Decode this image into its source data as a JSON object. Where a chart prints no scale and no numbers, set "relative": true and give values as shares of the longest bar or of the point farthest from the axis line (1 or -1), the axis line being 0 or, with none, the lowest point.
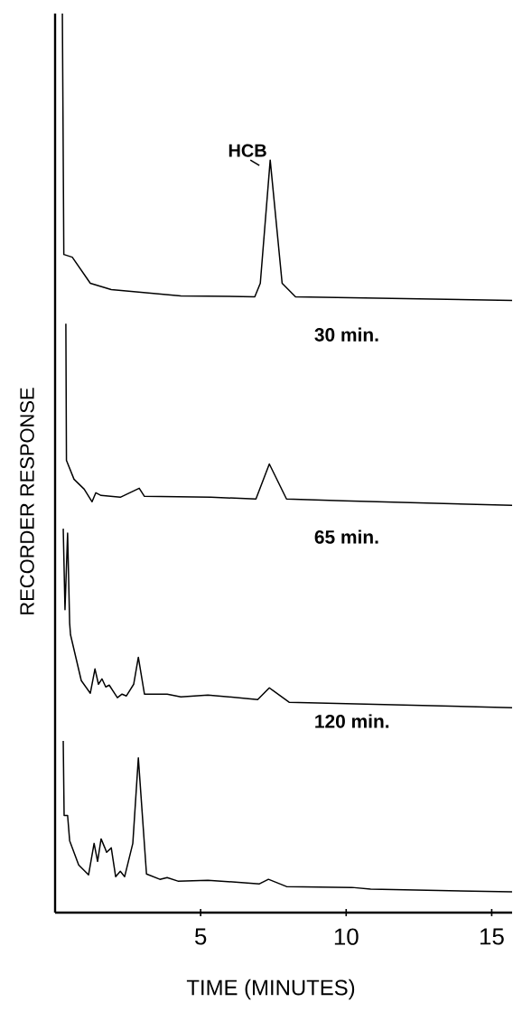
{
  "chart_data": {
    "type": "line",
    "relative": true,
    "xlabel": "TIME (MINUTES)",
    "ylabel": "RECORDER RESPONSE",
    "xlim": [
      0,
      15.7
    ],
    "xticks": [
      5,
      10,
      15
    ],
    "marker": "none",
    "line_style": "solid",
    "grid": false,
    "annotations": [
      {
        "text": "HCB",
        "x": 7.39,
        "y": 0.837
      },
      "30 min.",
      "65 min.",
      "120 min."
    ],
    "series": [
      {
        "color": "#000000",
        "x": [
          0.25,
          0.3,
          0.59,
          1.21,
          1.93,
          4.32,
          6.86,
          7.05,
          7.39,
          7.8,
          8.26,
          15.7
        ],
        "values": [
          1.0,
          0.732,
          0.729,
          0.7,
          0.693,
          0.686,
          0.685,
          0.7,
          0.837,
          0.7,
          0.685,
          0.681
        ]
      },
      {
        "color": "#000000",
        "x": [
          0.37,
          0.39,
          0.65,
          1.0,
          1.27,
          1.4,
          1.58,
          2.24,
          2.89,
          3.07,
          5.35,
          6.9,
          7.36,
          7.95,
          9.9,
          15.7
        ],
        "values": [
          0.655,
          0.503,
          0.482,
          0.471,
          0.457,
          0.467,
          0.464,
          0.462,
          0.472,
          0.463,
          0.462,
          0.46,
          0.499,
          0.46,
          0.458,
          0.453
        ]
      },
      {
        "color": "#000000",
        "x": [
          0.28,
          0.34,
          0.43,
          0.5,
          0.53,
          0.9,
          1.21,
          1.37,
          1.49,
          1.61,
          1.74,
          1.86,
          2.14,
          2.3,
          2.45,
          2.7,
          2.86,
          3.07,
          3.85,
          4.32,
          5.25,
          6.96,
          7.36,
          8.04,
          15.7
        ],
        "values": [
          0.427,
          0.337,
          0.422,
          0.322,
          0.309,
          0.258,
          0.244,
          0.271,
          0.254,
          0.26,
          0.251,
          0.253,
          0.239,
          0.243,
          0.241,
          0.254,
          0.284,
          0.243,
          0.243,
          0.24,
          0.242,
          0.237,
          0.25,
          0.234,
          0.228
        ]
      },
      {
        "color": "#000000",
        "x": [
          0.28,
          0.31,
          0.43,
          0.5,
          0.81,
          1.15,
          1.34,
          1.46,
          1.58,
          1.71,
          1.77,
          1.93,
          2.08,
          2.24,
          2.39,
          2.67,
          2.86,
          3.14,
          3.6,
          3.85,
          4.22,
          5.25,
          7.02,
          7.33,
          7.95,
          10.2,
          10.84,
          15.7
        ],
        "values": [
          0.191,
          0.108,
          0.108,
          0.08,
          0.053,
          0.042,
          0.077,
          0.057,
          0.082,
          0.072,
          0.067,
          0.072,
          0.04,
          0.046,
          0.04,
          0.077,
          0.172,
          0.043,
          0.037,
          0.039,
          0.035,
          0.036,
          0.032,
          0.037,
          0.029,
          0.028,
          0.026,
          0.023
        ]
      }
    ]
  }
}
